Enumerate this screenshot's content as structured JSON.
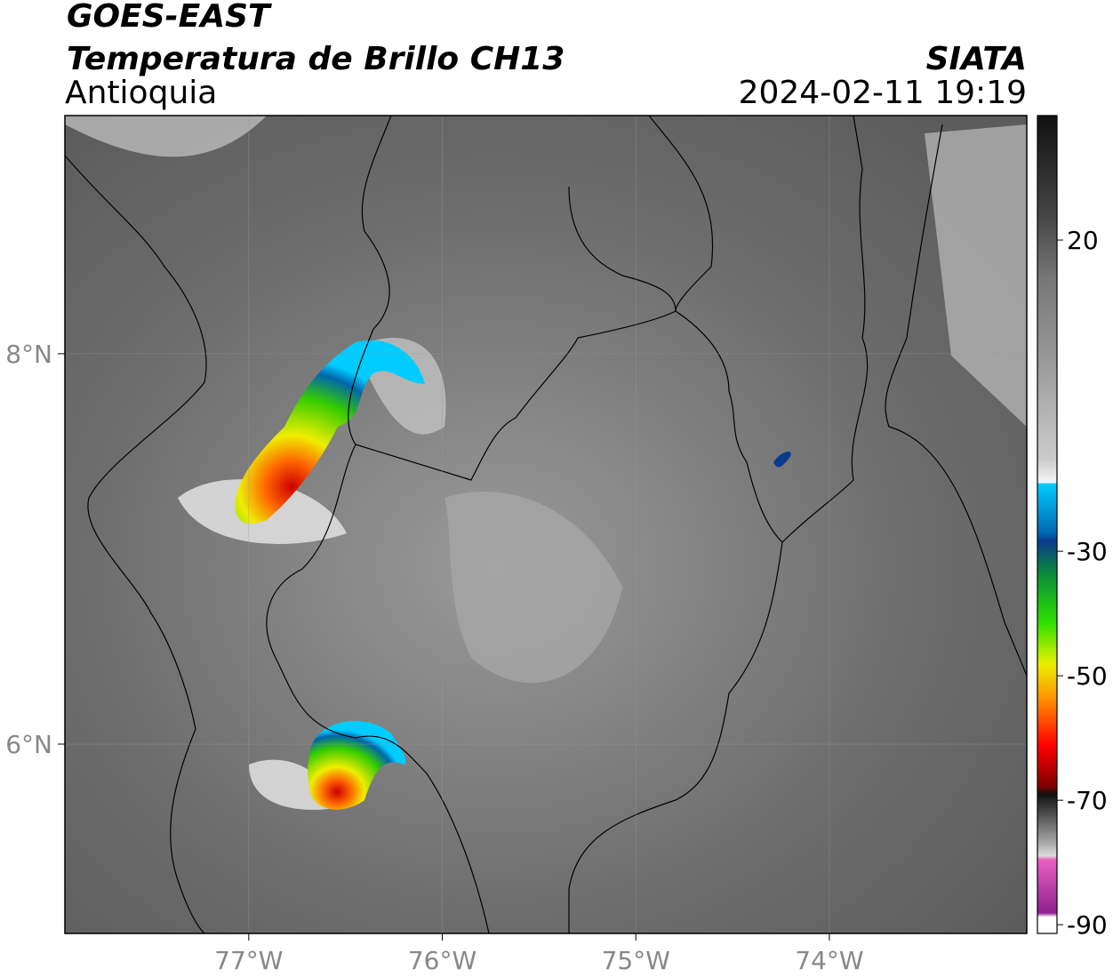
{
  "header": {
    "satellite": "GOES-EAST",
    "product": "Temperatura de Brillo CH13",
    "region": "Antioquia",
    "source": "SIATA",
    "datetime": "2024-02-11 19:19"
  },
  "map": {
    "xlim": [
      -77.95,
      -72.98
    ],
    "ylim": [
      5.03,
      9.22
    ],
    "xticks": [
      {
        "value": -77,
        "label": "77°W"
      },
      {
        "value": -76,
        "label": "76°W"
      },
      {
        "value": -75,
        "label": "75°W"
      },
      {
        "value": -74,
        "label": "74°W"
      }
    ],
    "yticks": [
      {
        "value": 8,
        "label": "8°N"
      },
      {
        "value": 6,
        "label": "6°N"
      }
    ]
  },
  "colorbar": {
    "range": [
      -91.4,
      40
    ],
    "ticks": [
      20,
      -30,
      -50,
      -70,
      -90
    ]
  }
}
